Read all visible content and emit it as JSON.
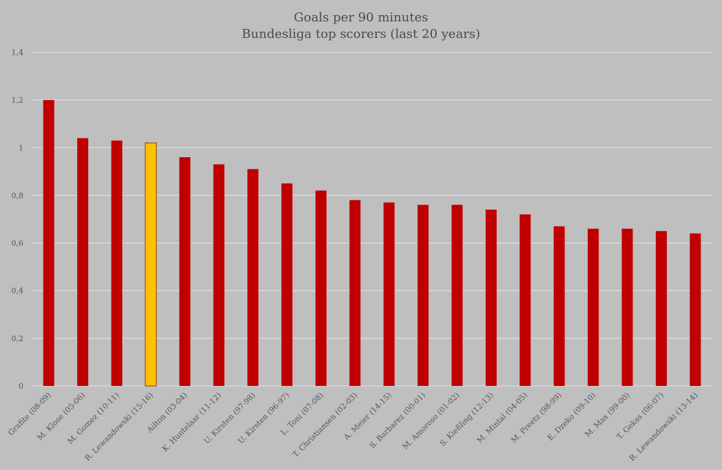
{
  "chart_data": {
    "type": "bar",
    "title": "Goals per 90 minutes",
    "subtitle": "Bundesliga top scorers (last 20 years)",
    "xlabel": "",
    "ylabel": "",
    "ylim": [
      0,
      1.4
    ],
    "yticks": [
      "0",
      "0,2",
      "0,4",
      "0,6",
      "0,8",
      "1",
      "1,2",
      "1,4"
    ],
    "grid": true,
    "legend": "none",
    "colors": {
      "bar": "#c00000",
      "highlight": "#ffc000",
      "highlight_border": "#8a3a00"
    },
    "highlight_index": 3,
    "categories": [
      "Grafite (08-09)",
      "M. Klose (05-06)",
      "M. Gomez (10-11)",
      "R. Lewandowski (15-16)",
      "Ailton (03-04)",
      "K. Huntelaar (11-12)",
      "U. Kirsten (97-98)",
      "U. Kirsten (96-97)",
      "L. Toni (07-08)",
      "T. Christiansen (02-03)",
      "A. Meier (14-15)",
      "S. Barbarez (00-01)",
      "M. Amoroso (01-02)",
      "S. Kießling (12-13)",
      "M. Mintal (04-05)",
      "M. Preetz (98-99)",
      "E. Dzeko (09-10)",
      "M. Max (99-00)",
      "T. Gekas (06-07)",
      "R. Lewandowski (13-14)"
    ],
    "values": [
      1.2,
      1.04,
      1.03,
      1.02,
      0.96,
      0.93,
      0.91,
      0.85,
      0.82,
      0.78,
      0.77,
      0.76,
      0.76,
      0.74,
      0.72,
      0.67,
      0.66,
      0.66,
      0.65,
      0.64
    ]
  }
}
